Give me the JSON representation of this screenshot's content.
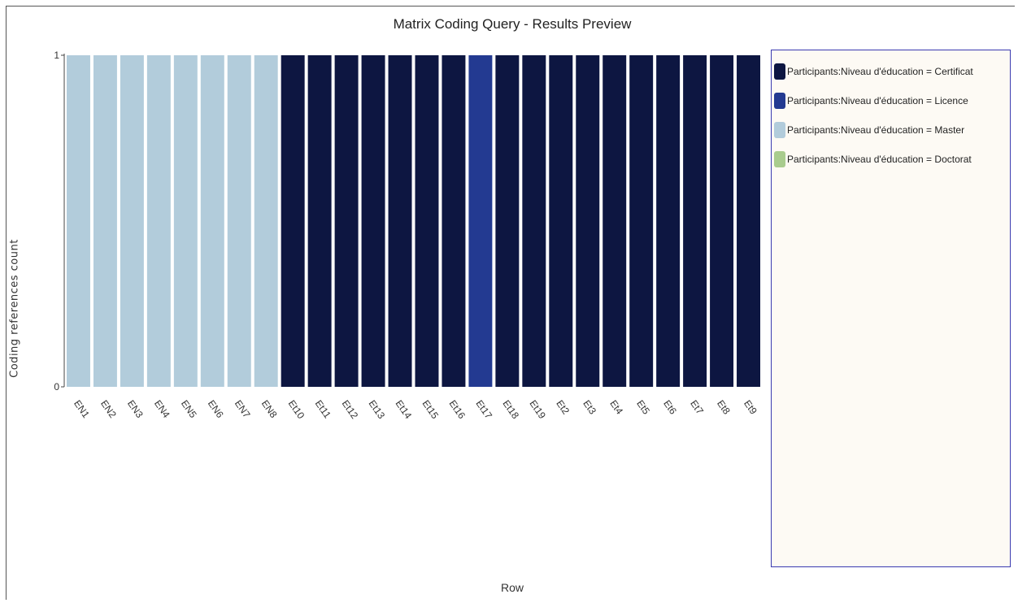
{
  "chart_data": {
    "type": "bar",
    "title": "Matrix Coding Query - Results Preview",
    "xlabel": "Row",
    "ylabel": "Coding references count",
    "ylim": [
      0,
      1
    ],
    "yticks": [
      "0",
      "1"
    ],
    "categories": [
      "EN1",
      "EN2",
      "EN3",
      "EN4",
      "EN5",
      "EN6",
      "EN7",
      "EN8",
      "Et10",
      "Et11",
      "Et12",
      "Et13",
      "Et14",
      "Et15",
      "Et16",
      "Et17",
      "Et18",
      "Et19",
      "Et2",
      "Et3",
      "Et4",
      "Et5",
      "Et6",
      "Et7",
      "Et8",
      "Et9"
    ],
    "series": [
      {
        "name": "Participants:Niveau d'éducation = Certificat",
        "color": "#0d1641",
        "values": [
          0,
          0,
          0,
          0,
          0,
          0,
          0,
          0,
          1,
          1,
          1,
          1,
          1,
          1,
          1,
          0,
          1,
          1,
          1,
          1,
          1,
          1,
          1,
          1,
          1,
          1
        ]
      },
      {
        "name": "Participants:Niveau d'éducation = Licence",
        "color": "#233a91",
        "values": [
          0,
          0,
          0,
          0,
          0,
          0,
          0,
          0,
          0,
          0,
          0,
          0,
          0,
          0,
          0,
          1,
          0,
          0,
          0,
          0,
          0,
          0,
          0,
          0,
          0,
          0
        ]
      },
      {
        "name": "Participants:Niveau d'éducation = Master",
        "color": "#b2ccdb",
        "values": [
          1,
          1,
          1,
          1,
          1,
          1,
          1,
          1,
          0,
          0,
          0,
          0,
          0,
          0,
          0,
          0,
          0,
          0,
          0,
          0,
          0,
          0,
          0,
          0,
          0,
          0
        ]
      },
      {
        "name": "Participants:Niveau d'éducation = Doctorat",
        "color": "#a9cc8e",
        "values": [
          0,
          0,
          0,
          0,
          0,
          0,
          0,
          0,
          0,
          0,
          0,
          0,
          0,
          0,
          0,
          0,
          0,
          0,
          0,
          0,
          0,
          0,
          0,
          0,
          0,
          0
        ]
      }
    ],
    "grid": false,
    "legend_position": "right"
  }
}
